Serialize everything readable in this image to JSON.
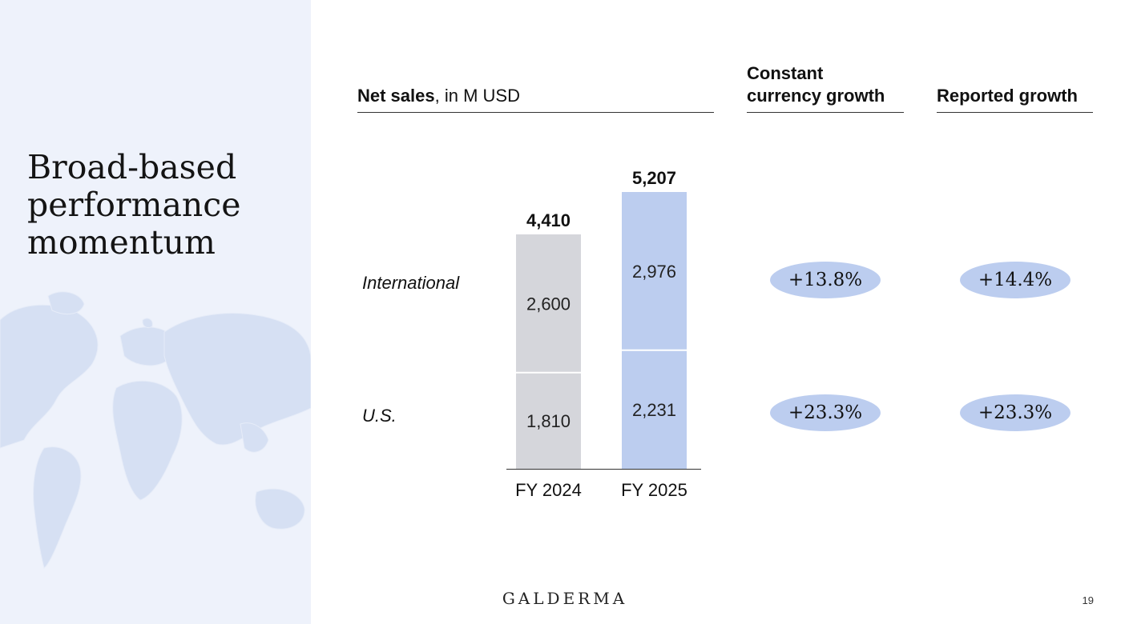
{
  "slide": {
    "title_lines": [
      "Broad-based",
      "performance",
      "momentum"
    ],
    "page_number": "19",
    "brand": "GALDERMA"
  },
  "headers": {
    "net_sales_bold": "Net sales",
    "net_sales_rest": ", in M USD",
    "constant_growth_line1": "Constant",
    "constant_growth_line2": "currency growth",
    "reported_growth": "Reported growth"
  },
  "rows": {
    "international": "International",
    "us": "U.S."
  },
  "growth": {
    "international": {
      "constant": "+13.8%",
      "reported": "+14.4%"
    },
    "us": {
      "constant": "+23.3%",
      "reported": "+23.3%"
    }
  },
  "colors": {
    "fy2024_bar": "#d5d6db",
    "fy2025_bar": "#bccdef",
    "pill": "#bccdef",
    "side_panel": "#eef2fb",
    "map": "#d6e0f3"
  },
  "chart_data": {
    "type": "bar",
    "stacked": true,
    "categories": [
      "FY 2024",
      "FY 2025"
    ],
    "series": [
      {
        "name": "U.S.",
        "values": [
          1810,
          2231
        ],
        "labels": [
          "1,810",
          "2,231"
        ]
      },
      {
        "name": "International",
        "values": [
          2600,
          2976
        ],
        "labels": [
          "2,600",
          "2,976"
        ]
      }
    ],
    "totals": [
      4410,
      5207
    ],
    "total_labels": [
      "4,410",
      "5,207"
    ],
    "title": "Net sales, in M USD",
    "ylim": [
      0,
      5207
    ],
    "grid": false,
    "legend": "none"
  }
}
